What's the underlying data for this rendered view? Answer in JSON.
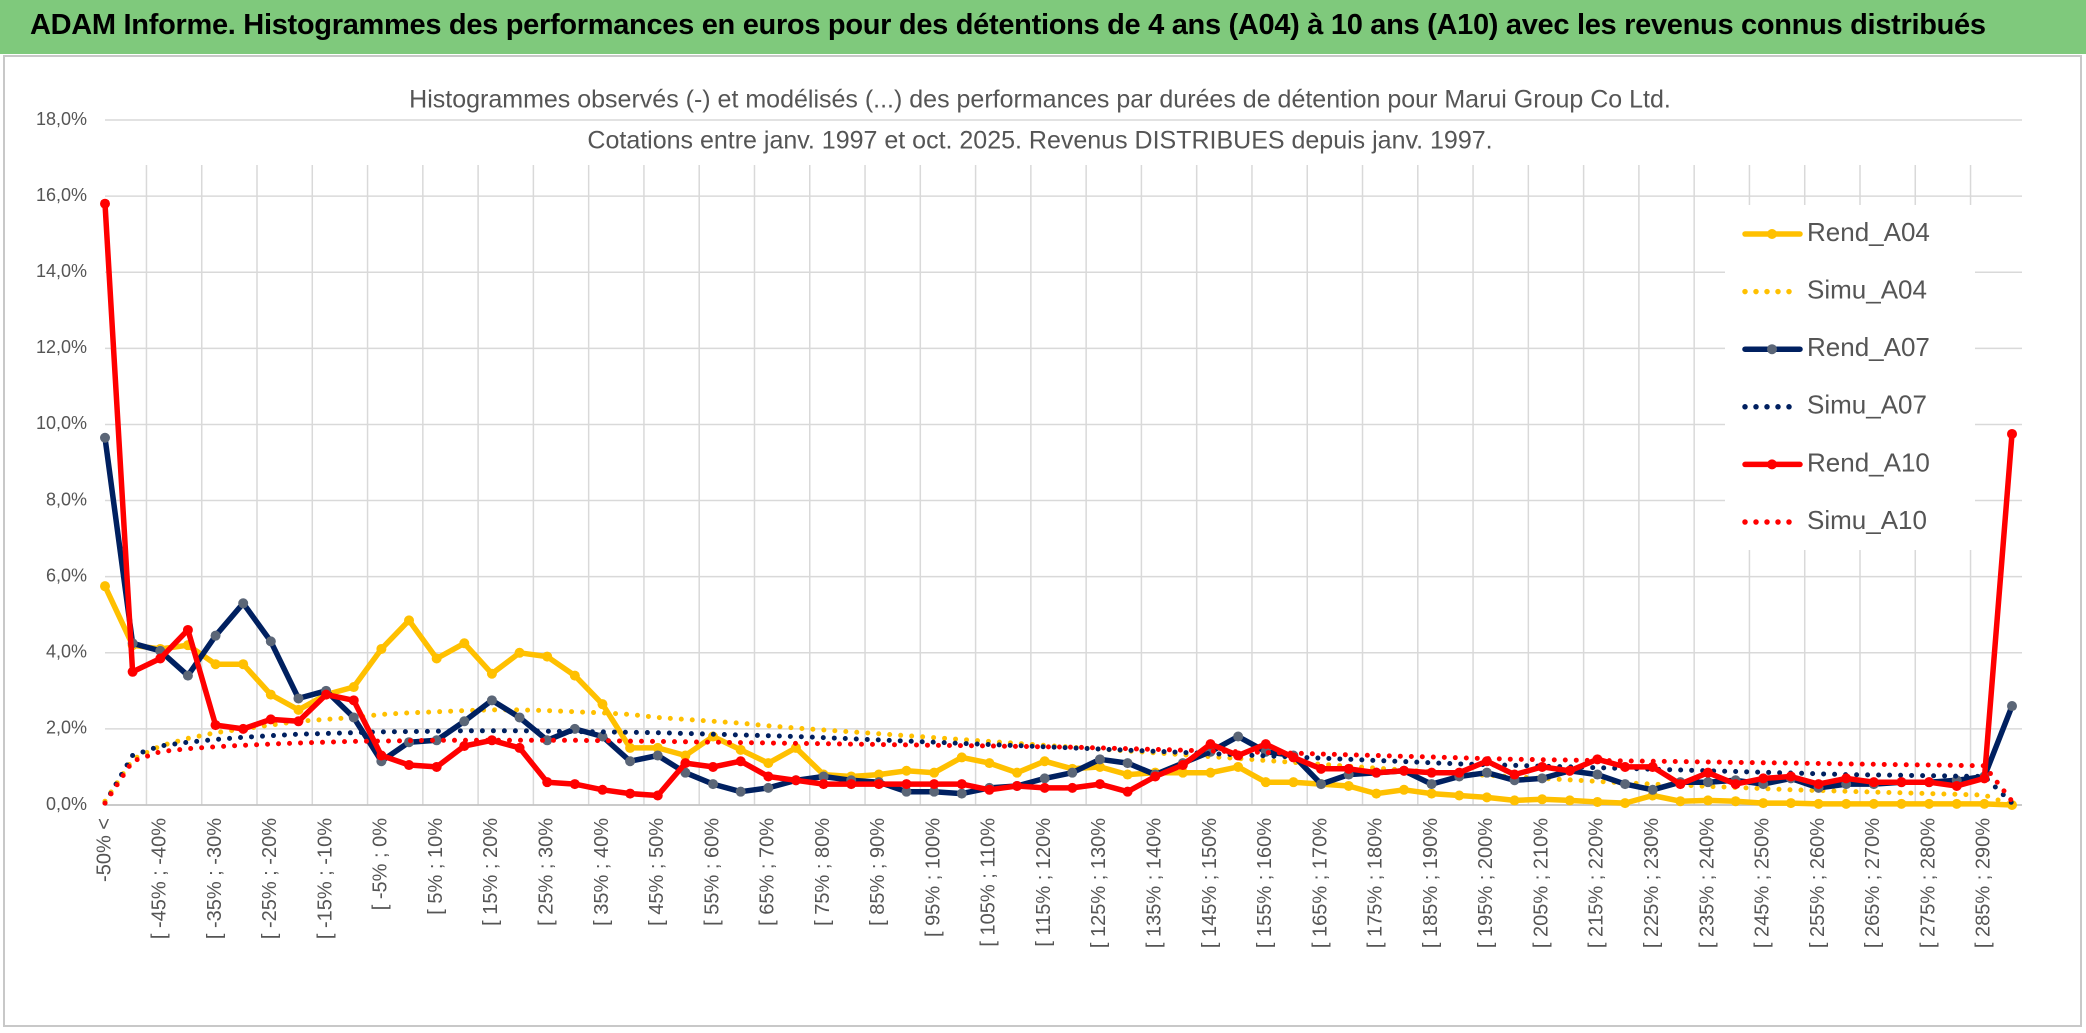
{
  "header": {
    "title": "ADAM Informe. Histogrammes des performances en euros pour des détentions de 4 ans (A04) à 10 ans (A10) avec les revenus connus distribués"
  },
  "chart_data": {
    "type": "line",
    "title": [
      "Histogrammes observés (-) et modélisés (...) des performances par durées de détention pour Marui Group Co Ltd.",
      "Cotations entre janv. 1997 et oct. 2025. Revenus DISTRIBUES depuis janv. 1997."
    ],
    "categories": [
      "-50% <",
      null,
      "[ -45% ; -40%",
      null,
      "[ -35% ; -30%",
      null,
      "[ -25% ; -20%",
      null,
      "[ -15% ; -10%",
      null,
      "[ -5% ; 0%",
      null,
      "[ 5% ; 10%",
      null,
      "[ 15% ; 20%",
      null,
      "[ 25% ; 30%",
      null,
      "[ 35% ; 40%",
      null,
      "[ 45% ; 50%",
      null,
      "[ 55% ; 60%",
      null,
      "[ 65% ; 70%",
      null,
      "[ 75% ; 80%",
      null,
      "[ 85% ; 90%",
      null,
      "[ 95% ; 100%",
      null,
      "[ 105% ; 110%",
      null,
      "[ 115% ; 120%",
      null,
      "[ 125% ; 130%",
      null,
      "[ 135% ; 140%",
      null,
      "[ 145% ; 150%",
      null,
      "[ 155% ; 160%",
      null,
      "[ 165% ; 170%",
      null,
      "[ 175% ; 180%",
      null,
      "[ 185% ; 190%",
      null,
      "[ 195% ; 200%",
      null,
      "[ 205% ; 210%",
      null,
      "[ 215% ; 220%",
      null,
      "[ 225% ; 230%",
      null,
      "[ 235% ; 240%",
      null,
      "[ 245% ; 250%",
      null,
      "[ 255% ; 260%",
      null,
      "[ 265% ; 270%",
      null,
      "[ 275% ; 280%",
      null,
      "[ 285% ; 290%",
      null
    ],
    "series": [
      {
        "name": "Rend_A04",
        "color": "#ffc000",
        "style": "solid",
        "markers": true,
        "values": [
          5.75,
          4.2,
          4.1,
          4.2,
          3.7,
          3.7,
          2.9,
          2.5,
          2.9,
          3.1,
          4.1,
          4.85,
          3.85,
          4.25,
          3.45,
          4.0,
          3.9,
          3.4,
          2.65,
          1.5,
          1.5,
          1.3,
          1.8,
          1.45,
          1.1,
          1.5,
          0.8,
          0.75,
          0.8,
          0.9,
          0.85,
          1.25,
          1.1,
          0.85,
          1.15,
          0.95,
          1.0,
          0.8,
          0.85,
          0.85,
          0.85,
          1.0,
          0.6,
          0.6,
          0.55,
          0.5,
          0.3,
          0.4,
          0.3,
          0.25,
          0.2,
          0.12,
          0.15,
          0.12,
          0.08,
          0.05,
          0.25,
          0.1,
          0.12,
          0.1,
          0.05,
          0.05,
          0.03,
          0.03,
          0.03,
          0.03,
          0.03,
          0.03,
          0.03,
          0.0
        ]
      },
      {
        "name": "Simu_A04",
        "color": "#ffc000",
        "style": "dotted",
        "markers": false,
        "values": [
          0.1,
          1.2,
          1.55,
          1.75,
          1.9,
          2.0,
          2.1,
          2.2,
          2.25,
          2.3,
          2.38,
          2.42,
          2.45,
          2.48,
          2.5,
          2.5,
          2.48,
          2.45,
          2.42,
          2.38,
          2.3,
          2.25,
          2.2,
          2.15,
          2.08,
          2.02,
          1.97,
          1.92,
          1.87,
          1.82,
          1.77,
          1.72,
          1.67,
          1.62,
          1.57,
          1.52,
          1.47,
          1.42,
          1.37,
          1.32,
          1.27,
          1.22,
          1.17,
          1.12,
          1.07,
          1.02,
          0.97,
          0.92,
          0.87,
          0.82,
          0.78,
          0.74,
          0.7,
          0.66,
          0.62,
          0.58,
          0.55,
          0.52,
          0.49,
          0.46,
          0.43,
          0.4,
          0.38,
          0.36,
          0.34,
          0.32,
          0.3,
          0.28,
          0.26,
          0.0
        ]
      },
      {
        "name": "Rend_A07",
        "color": "#002060",
        "marker_color": "#5b6677",
        "style": "solid",
        "markers": true,
        "values": [
          9.65,
          4.25,
          4.05,
          3.4,
          4.45,
          5.3,
          4.3,
          2.8,
          3.0,
          2.3,
          1.15,
          1.65,
          1.7,
          2.2,
          2.75,
          2.3,
          1.7,
          2.0,
          1.8,
          1.15,
          1.3,
          0.85,
          0.55,
          0.35,
          0.45,
          0.65,
          0.75,
          0.65,
          0.6,
          0.35,
          0.35,
          0.3,
          0.45,
          0.5,
          0.7,
          0.85,
          1.2,
          1.1,
          0.8,
          1.1,
          1.4,
          1.8,
          1.4,
          1.3,
          0.55,
          0.8,
          0.85,
          0.9,
          0.55,
          0.75,
          0.85,
          0.65,
          0.7,
          0.9,
          0.8,
          0.55,
          0.4,
          0.6,
          0.6,
          0.65,
          0.55,
          0.7,
          0.45,
          0.55,
          0.55,
          0.6,
          0.6,
          0.65,
          0.75,
          2.6
        ]
      },
      {
        "name": "Simu_A07",
        "color": "#002060",
        "style": "dotted",
        "markers": false,
        "values": [
          0.05,
          1.3,
          1.55,
          1.65,
          1.72,
          1.78,
          1.82,
          1.86,
          1.88,
          1.9,
          1.92,
          1.93,
          1.94,
          1.95,
          1.95,
          1.95,
          1.94,
          1.93,
          1.92,
          1.91,
          1.9,
          1.88,
          1.86,
          1.84,
          1.82,
          1.8,
          1.77,
          1.74,
          1.71,
          1.68,
          1.65,
          1.62,
          1.59,
          1.56,
          1.53,
          1.5,
          1.47,
          1.44,
          1.41,
          1.38,
          1.35,
          1.32,
          1.29,
          1.26,
          1.23,
          1.2,
          1.17,
          1.14,
          1.11,
          1.08,
          1.06,
          1.04,
          1.02,
          1.0,
          0.98,
          0.96,
          0.94,
          0.92,
          0.9,
          0.88,
          0.86,
          0.84,
          0.82,
          0.8,
          0.79,
          0.78,
          0.77,
          0.76,
          0.75,
          0.05
        ]
      },
      {
        "name": "Rend_A10",
        "color": "#ff0000",
        "style": "solid",
        "markers": true,
        "values": [
          15.8,
          3.5,
          3.85,
          4.6,
          2.1,
          2.0,
          2.25,
          2.2,
          2.9,
          2.75,
          1.3,
          1.05,
          1.0,
          1.55,
          1.7,
          1.5,
          0.6,
          0.55,
          0.4,
          0.3,
          0.25,
          1.1,
          1.0,
          1.15,
          0.75,
          0.65,
          0.55,
          0.55,
          0.55,
          0.55,
          0.55,
          0.55,
          0.4,
          0.5,
          0.45,
          0.45,
          0.55,
          0.35,
          0.75,
          1.05,
          1.6,
          1.3,
          1.6,
          1.25,
          0.95,
          0.95,
          0.85,
          0.9,
          0.85,
          0.85,
          1.15,
          0.8,
          1.0,
          0.9,
          1.2,
          1.0,
          1.0,
          0.55,
          0.85,
          0.55,
          0.7,
          0.75,
          0.55,
          0.7,
          0.6,
          0.6,
          0.6,
          0.5,
          0.7,
          9.75
        ]
      },
      {
        "name": "Simu_A10",
        "color": "#ff0000",
        "style": "dotted",
        "markers": false,
        "values": [
          0.05,
          1.15,
          1.4,
          1.48,
          1.53,
          1.57,
          1.6,
          1.63,
          1.65,
          1.67,
          1.68,
          1.69,
          1.7,
          1.7,
          1.7,
          1.7,
          1.7,
          1.7,
          1.69,
          1.68,
          1.67,
          1.66,
          1.65,
          1.64,
          1.63,
          1.62,
          1.61,
          1.6,
          1.59,
          1.58,
          1.57,
          1.56,
          1.55,
          1.54,
          1.53,
          1.52,
          1.5,
          1.48,
          1.46,
          1.44,
          1.42,
          1.4,
          1.38,
          1.36,
          1.34,
          1.32,
          1.3,
          1.28,
          1.26,
          1.24,
          1.22,
          1.2,
          1.19,
          1.18,
          1.17,
          1.16,
          1.15,
          1.14,
          1.13,
          1.12,
          1.11,
          1.1,
          1.09,
          1.08,
          1.07,
          1.06,
          1.05,
          1.04,
          1.03,
          0.1
        ]
      }
    ],
    "ylim": [
      0,
      18
    ],
    "yticks": [
      {
        "value": 0,
        "label": "0,0%"
      },
      {
        "value": 2,
        "label": "2,0%"
      },
      {
        "value": 4,
        "label": "4,0%"
      },
      {
        "value": 6,
        "label": "6,0%"
      },
      {
        "value": 8,
        "label": "8,0%"
      },
      {
        "value": 10,
        "label": "10,0%"
      },
      {
        "value": 12,
        "label": "12,0%"
      },
      {
        "value": 14,
        "label": "14,0%"
      },
      {
        "value": 16,
        "label": "16,0%"
      },
      {
        "value": 18,
        "label": "18,0%"
      }
    ],
    "grid": true,
    "legend": "top-right"
  }
}
